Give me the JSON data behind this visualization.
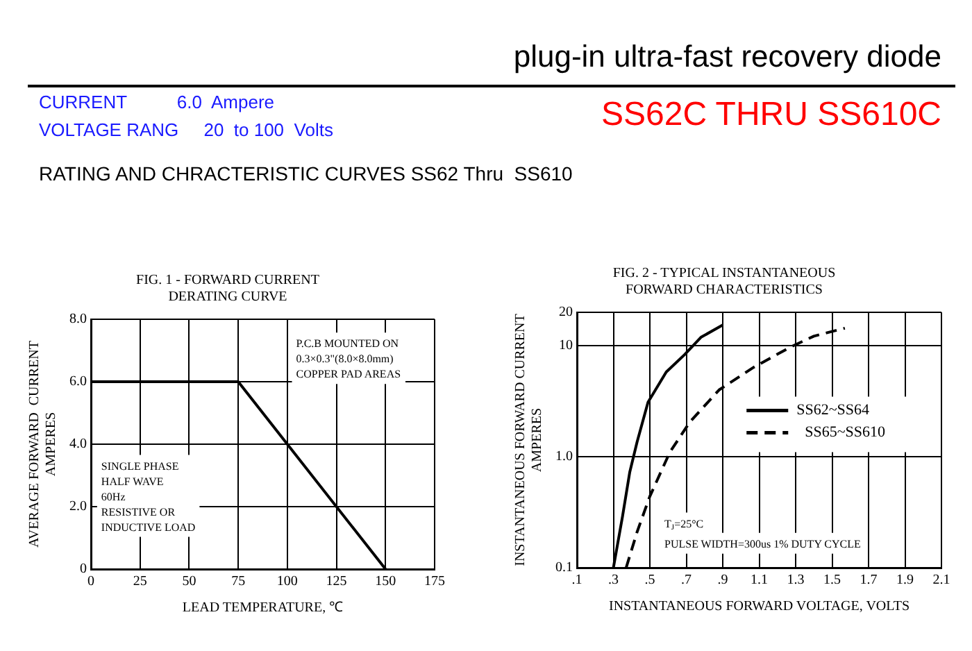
{
  "chart_data": [
    {
      "type": "other",
      "title": "plug-in ultra-fast recovery diode",
      "annotations": [
        "CURRENT          6.0  Ampere",
        "VOLTAGE RANG     20  to 100  Volts",
        "SS62C THRU SS610C",
        "RATING AND CHRACTERISTIC CURVES SS62 Thru  SS610"
      ]
    },
    {
      "type": "line",
      "title": "FIG. 1 - FORWARD CURRENT\nDERATING CURVE",
      "xlabel": "LEAD TEMPERATURE, ℃",
      "ylabel": "AVERAGE FORWARD  CURRENT\nAMPERES",
      "series": [
        {
          "x": [
            0,
            75,
            150
          ],
          "values": [
            6,
            6,
            0
          ],
          "color": "#000000"
        }
      ],
      "xlim": [
        0,
        175
      ],
      "xticks": [
        0,
        25,
        50,
        75,
        100,
        125,
        150,
        175
      ],
      "ylim": [
        0,
        8
      ],
      "yticks": [
        0,
        {
          "value": 2,
          "label": "2.0"
        },
        {
          "value": 4,
          "label": "4.0"
        },
        {
          "value": 6,
          "label": "6.0"
        },
        {
          "value": 8,
          "label": "8.0"
        }
      ],
      "grid": true,
      "annotations": [
        "P.C.B MOUNTED ON\n0.3×0.3\"(8.0×8.0mm)\nCOPPER PAD AREAS",
        "SINGLE PHASE\nHALF WAVE\n60Hz\nRESISTIVE OR\nINDUCTIVE LOAD"
      ]
    },
    {
      "type": "line",
      "title": "FIG. 2 - TYPICAL INSTANTANEOUS\nFORWARD CHARACTERISTICS",
      "xlabel": "INSTANTANEOUS FORWARD VOLTAGE, VOLTS",
      "ylabel": "INSTANTANEOUS FORWARD CURRENT\nAMPERES",
      "series": [
        {
          "name": "SS62~SS64",
          "color": "#000000",
          "line_style": "solid",
          "x": [
            0.3,
            0.35,
            0.39,
            0.43,
            0.49,
            0.59,
            0.69,
            0.78,
            0.9
          ],
          "values": [
            0.1,
            0.29,
            0.73,
            1.36,
            3.1,
            5.8,
            8.3,
            11.9,
            15.4
          ]
        },
        {
          "name": "SS65~SS610",
          "color": "#000000",
          "line_style": "dashed",
          "x": [
            0.37,
            0.43,
            0.5,
            0.61,
            0.72,
            0.88,
            1.07,
            1.27,
            1.4,
            1.57
          ],
          "values": [
            0.1,
            0.21,
            0.44,
            1.1,
            2.06,
            4.0,
            6.4,
            9.7,
            12.2,
            14.4
          ]
        }
      ],
      "log": "y",
      "xlim": [
        0.1,
        2.1
      ],
      "xticks": [
        {
          "value": 0.1,
          "label": ".1"
        },
        {
          "value": 0.3,
          "label": ".3"
        },
        {
          "value": 0.5,
          "label": ".5"
        },
        {
          "value": 0.7,
          "label": ".7"
        },
        {
          "value": 0.9,
          "label": ".9"
        },
        {
          "value": 1.1,
          "label": "1.1"
        },
        1.3,
        1.5,
        1.7,
        1.9,
        2.1
      ],
      "ylim": [
        0.1,
        20
      ],
      "yticks": [
        0.1,
        {
          "value": 1,
          "label": "1.0"
        },
        10,
        20
      ],
      "grid": true,
      "legend": "right",
      "annotations": [
        "T$_{J}$=25°C",
        "PULSE WIDTH=300us 1% DUTY CYCLE"
      ]
    }
  ]
}
